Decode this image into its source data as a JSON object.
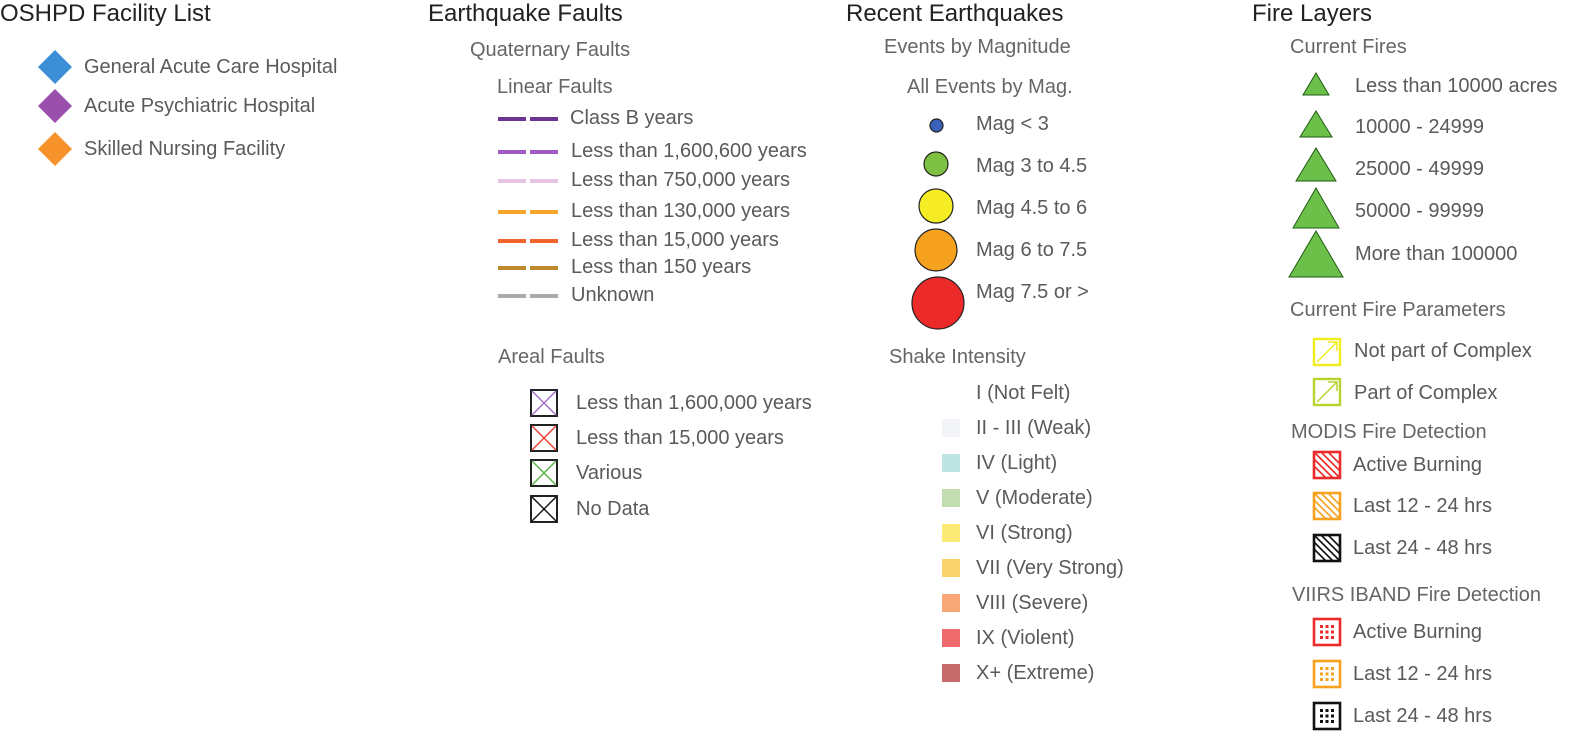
{
  "oshpd": {
    "title": "OSHPD Facility List",
    "items": [
      {
        "label": "General Acute Care Hospital",
        "color": "#3a8fd6",
        "icon": "diamond-icon"
      },
      {
        "label": "Acute Psychiatric Hospital",
        "color": "#9b4fad",
        "icon": "diamond-icon"
      },
      {
        "label": "Skilled Nursing Facility",
        "color": "#f7922a",
        "icon": "diamond-icon"
      }
    ]
  },
  "faults": {
    "title": "Earthquake Faults",
    "quaternary_title": "Quaternary Faults",
    "linear_title": "Linear Faults",
    "linear": [
      {
        "label": "Class B years",
        "color": "#6a3593"
      },
      {
        "label": "Less than 1,600,600 years",
        "color": "#a05bc4"
      },
      {
        "label": "Less than 750,000 years",
        "color": "#e6c4e4"
      },
      {
        "label": "Less than 130,000 years",
        "color": "#f4a52a"
      },
      {
        "label": "Less than 15,000 years",
        "color": "#f0632b"
      },
      {
        "label": "Less than 150 years",
        "color": "#bf8a2e"
      },
      {
        "label": "Unknown",
        "color": "#aaaaaa"
      }
    ],
    "areal_title": "Areal Faults",
    "areal": [
      {
        "label": "Less than 1,600,000 years",
        "color": "#a06ec4"
      },
      {
        "label": "Less than 15,000 years",
        "color": "#e8402e"
      },
      {
        "label": "Various",
        "color": "#55b444"
      },
      {
        "label": "No Data",
        "color": "#111111"
      }
    ]
  },
  "quakes": {
    "title": "Recent Earthquakes",
    "magnitude_title": "Events by Magnitude",
    "all_events_title": "All Events by Mag.",
    "magnitudes": [
      {
        "label": "Mag < 3",
        "color": "#3a62b8"
      },
      {
        "label": "Mag 3 to 4.5",
        "color": "#7dc142"
      },
      {
        "label": "Mag 4.5 to 6",
        "color": "#f5ec23"
      },
      {
        "label": "Mag 6 to 7.5",
        "color": "#f7a21f"
      },
      {
        "label": "Mag 7.5 or >",
        "color": "#ec2a2a"
      }
    ],
    "shake_title": "Shake Intensity",
    "shake": [
      {
        "label": "I (Not Felt)",
        "color": "#ffffff"
      },
      {
        "label": "II - III (Weak)",
        "color": "#f3f4f8"
      },
      {
        "label": "IV (Light)",
        "color": "#bfe4e4"
      },
      {
        "label": "V (Moderate)",
        "color": "#c2deb0"
      },
      {
        "label": "VI (Strong)",
        "color": "#fbea74"
      },
      {
        "label": "VII (Very Strong)",
        "color": "#fbd36e"
      },
      {
        "label": "VIII (Severe)",
        "color": "#f8a877"
      },
      {
        "label": "IX (Violent)",
        "color": "#ef6a6c"
      },
      {
        "label": "X+ (Extreme)",
        "color": "#c46a6a"
      }
    ]
  },
  "fire": {
    "title": "Fire Layers",
    "current_title": "Current Fires",
    "current": [
      {
        "label": "Less than 10000 acres",
        "color": "#6cc049"
      },
      {
        "label": "10000 - 24999",
        "color": "#6cc049"
      },
      {
        "label": "25000 - 49999",
        "color": "#6cc049"
      },
      {
        "label": "50000 - 99999",
        "color": "#6cc049"
      },
      {
        "label": "More than 100000",
        "color": "#6cc049"
      }
    ],
    "params_title": "Current Fire Parameters",
    "params": [
      {
        "label": "Not part of Complex",
        "color": "#f2ec1a"
      },
      {
        "label": "Part of Complex",
        "color": "#b7d32e"
      }
    ],
    "modis_title": "MODIS Fire Detection",
    "modis": [
      {
        "label": "Active Burning",
        "color": "#ec2a2a"
      },
      {
        "label": "Last 12 - 24 hrs",
        "color": "#f7a21f"
      },
      {
        "label": "Last 24 - 48 hrs",
        "color": "#111111"
      }
    ],
    "viirs_title": "VIIRS IBAND Fire Detection",
    "viirs": [
      {
        "label": "Active Burning",
        "color": "#ec2a2a"
      },
      {
        "label": "Last 12 - 24 hrs",
        "color": "#f7a21f"
      },
      {
        "label": "Last 24 - 48 hrs",
        "color": "#111111"
      }
    ]
  }
}
